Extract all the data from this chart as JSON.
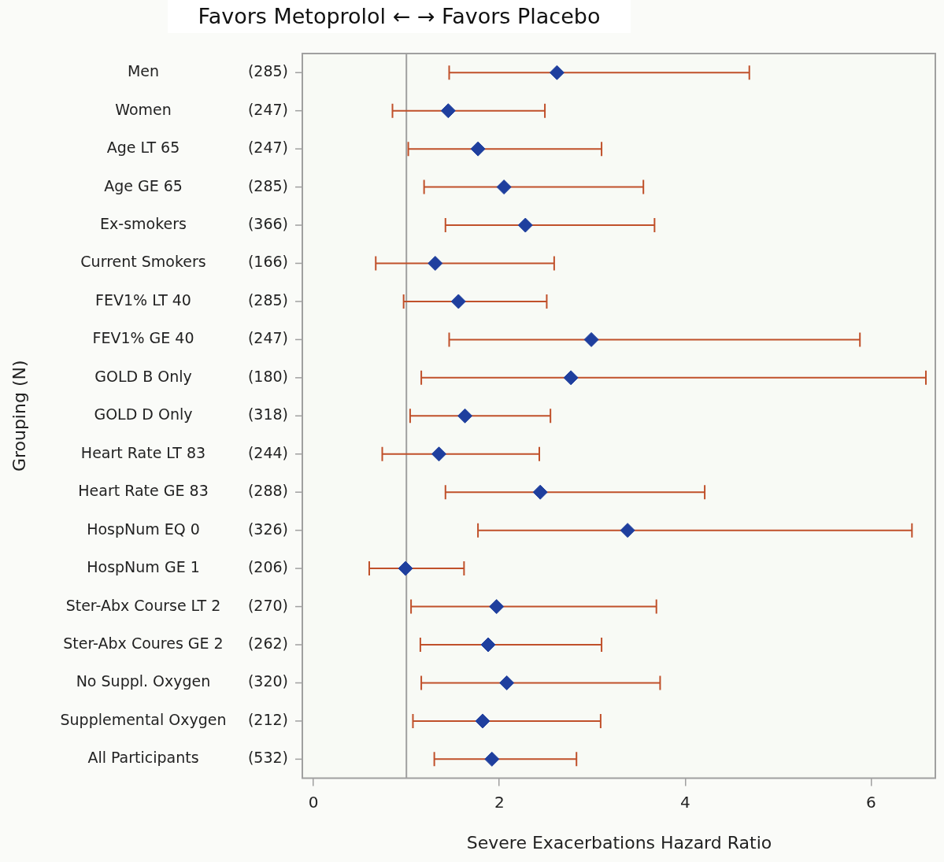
{
  "chart_data": {
    "type": "scatter",
    "orientation": "horizontal",
    "title": "Favors Metoprolol ←   → Favors Placebo",
    "xlabel": "Severe Exacerbations Hazard Ratio",
    "ylabel": "Grouping (N)",
    "categories": [
      "Men",
      "Women",
      "Age LT 65",
      "Age GE 65",
      "Ex-smokers",
      "Current Smokers",
      "FEV1% LT 40",
      "FEV1% GE 40",
      "GOLD B Only",
      "GOLD D Only",
      "Heart Rate LT 83",
      "Heart Rate GE 83",
      "HospNum EQ 0",
      "HospNum GE 1",
      "Ster-Abx Course LT 2",
      "Ster-Abx Coures GE 2",
      "No Suppl. Oxygen",
      "Supplemental Oxygen",
      "All Participants"
    ],
    "y2_categories": [
      "(285)",
      "(247)",
      "(247)",
      "(285)",
      "(366)",
      "(166)",
      "(285)",
      "(247)",
      "(180)",
      "(318)",
      "(244)",
      "(288)",
      "(326)",
      "(206)",
      "(270)",
      "(262)",
      "(320)",
      "(212)",
      "(532)"
    ],
    "series": [
      {
        "color": "#1f3f9e",
        "values": [
          2.62,
          1.45,
          1.77,
          2.05,
          2.28,
          1.31,
          1.56,
          2.99,
          2.77,
          1.63,
          1.35,
          2.44,
          3.38,
          0.99,
          1.97,
          1.88,
          2.08,
          1.82,
          1.92
        ],
        "errors": [
          [
            1.46,
            4.69
          ],
          [
            0.85,
            2.49
          ],
          [
            1.02,
            3.1
          ],
          [
            1.19,
            3.55
          ],
          [
            1.42,
            3.67
          ],
          [
            0.67,
            2.59
          ],
          [
            0.97,
            2.51
          ],
          [
            1.46,
            5.88
          ],
          [
            1.16,
            6.59
          ],
          [
            1.04,
            2.55
          ],
          [
            0.74,
            2.43
          ],
          [
            1.42,
            4.21
          ],
          [
            1.77,
            6.44
          ],
          [
            0.6,
            1.62
          ],
          [
            1.05,
            3.69
          ],
          [
            1.15,
            3.1
          ],
          [
            1.16,
            3.73
          ],
          [
            1.07,
            3.09
          ],
          [
            1.3,
            2.83
          ]
        ]
      }
    ],
    "xlim": [
      -0.12,
      6.7
    ],
    "xticks": [
      0,
      2,
      4,
      6
    ],
    "marker": "diamond",
    "ref_lines": [
      {
        "axis": "x",
        "value": 1,
        "color": "#a0a0a0"
      }
    ]
  }
}
